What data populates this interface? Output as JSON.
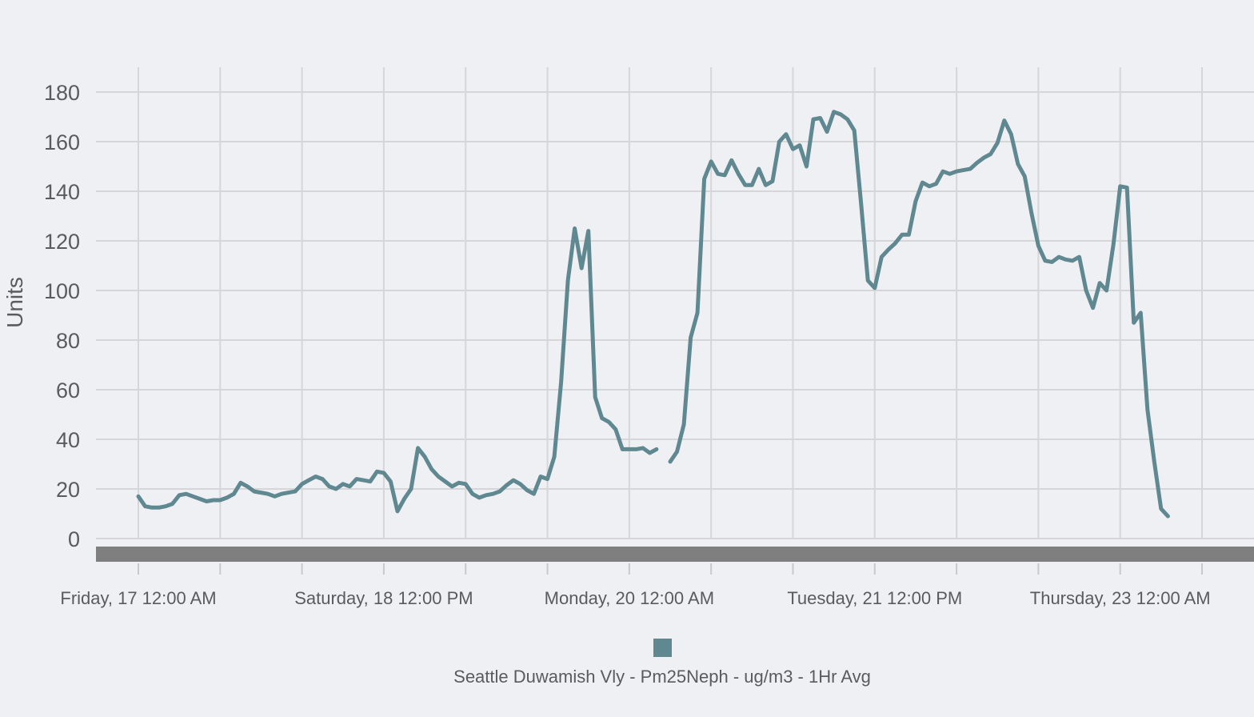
{
  "colors": {
    "series": "#5f8890",
    "baseline_band": "#7f7f7f"
  },
  "chart_data": {
    "type": "line",
    "title": "",
    "xlabel": "",
    "ylabel": "Units",
    "ylim": [
      0,
      180
    ],
    "yticks": [
      0,
      20,
      40,
      60,
      80,
      100,
      120,
      140,
      160,
      180
    ],
    "x_start": "Friday, 17 12:00 AM",
    "x_step": "2 hours",
    "xlim": [
      0,
      158
    ],
    "x_grid_interval": 12,
    "x_tick_labels": [
      {
        "x": 0,
        "label": "Friday, 17 12:00 AM"
      },
      {
        "x": 36,
        "label": "Saturday, 18 12:00 PM"
      },
      {
        "x": 72,
        "label": "Monday, 20 12:00 AM"
      },
      {
        "x": 108,
        "label": "Tuesday, 21 12:00 PM"
      },
      {
        "x": 144,
        "label": "Thursday, 23 12:00 AM"
      }
    ],
    "grid": true,
    "legend_position": "bottom-center",
    "series": [
      {
        "name": "Seattle Duwamish Vly - Pm25Neph - ug/m3 - 1Hr Avg",
        "segments": [
          [
            [
              0,
              17
            ],
            [
              1,
              13
            ],
            [
              2,
              12.5
            ],
            [
              3,
              12.5
            ],
            [
              4,
              13
            ],
            [
              5,
              14
            ],
            [
              6,
              17.5
            ],
            [
              7,
              18
            ],
            [
              8,
              17
            ],
            [
              9,
              16
            ],
            [
              10,
              15
            ],
            [
              11,
              15.5
            ],
            [
              12,
              15.5
            ],
            [
              13,
              16.5
            ],
            [
              14,
              18
            ],
            [
              15,
              22.5
            ],
            [
              16,
              21
            ],
            [
              17,
              19
            ],
            [
              18,
              18.5
            ],
            [
              19,
              18
            ],
            [
              20,
              17
            ],
            [
              21,
              18
            ],
            [
              22,
              18.5
            ],
            [
              23,
              19
            ],
            [
              24,
              22
            ],
            [
              25,
              23.5
            ],
            [
              26,
              25
            ],
            [
              27,
              24
            ],
            [
              28,
              21
            ],
            [
              29,
              20
            ],
            [
              30,
              22
            ],
            [
              31,
              21
            ],
            [
              32,
              24
            ],
            [
              33,
              23.5
            ],
            [
              34,
              23
            ],
            [
              35,
              27
            ],
            [
              36,
              26.5
            ],
            [
              37,
              23
            ],
            [
              38,
              11
            ],
            [
              39,
              16
            ],
            [
              40,
              20
            ],
            [
              41,
              36.5
            ],
            [
              42,
              33
            ],
            [
              43,
              28
            ],
            [
              44,
              25
            ],
            [
              45,
              23
            ],
            [
              46,
              21
            ],
            [
              47,
              22.5
            ],
            [
              48,
              22
            ],
            [
              49,
              18
            ],
            [
              50,
              16.5
            ],
            [
              51,
              17.5
            ],
            [
              52,
              18
            ],
            [
              53,
              19
            ],
            [
              54,
              21.5
            ],
            [
              55,
              23.5
            ],
            [
              56,
              22
            ],
            [
              57,
              19.5
            ],
            [
              58,
              18
            ],
            [
              59,
              25
            ],
            [
              60,
              24
            ],
            [
              61,
              33
            ],
            [
              62,
              63
            ],
            [
              63,
              104
            ],
            [
              64,
              125
            ],
            [
              65,
              109
            ],
            [
              66,
              124
            ],
            [
              67,
              57
            ],
            [
              68,
              48.5
            ],
            [
              69,
              47
            ],
            [
              70,
              44
            ],
            [
              71,
              36
            ],
            [
              72,
              36
            ],
            [
              73,
              36
            ],
            [
              74,
              36.5
            ],
            [
              75,
              34.5
            ],
            [
              76,
              36
            ]
          ],
          [
            [
              78,
              31
            ],
            [
              79,
              35
            ],
            [
              80,
              46
            ],
            [
              81,
              81
            ],
            [
              82,
              91
            ],
            [
              83,
              145
            ],
            [
              84,
              152
            ],
            [
              85,
              147
            ],
            [
              86,
              146.5
            ],
            [
              87,
              152.5
            ],
            [
              88,
              147
            ],
            [
              89,
              142.5
            ],
            [
              90,
              142.5
            ],
            [
              91,
              149
            ],
            [
              92,
              142.5
            ],
            [
              93,
              144
            ],
            [
              94,
              160
            ],
            [
              95,
              163
            ],
            [
              96,
              157
            ],
            [
              97,
              158.5
            ],
            [
              98,
              150
            ],
            [
              99,
              169
            ],
            [
              100,
              169.5
            ],
            [
              101,
              164
            ],
            [
              102,
              172
            ],
            [
              103,
              171
            ],
            [
              104,
              169
            ],
            [
              105,
              164.5
            ],
            [
              106,
              135
            ],
            [
              107,
              104
            ],
            [
              108,
              101
            ],
            [
              109,
              113.5
            ],
            [
              110,
              116.5
            ],
            [
              111,
              119
            ],
            [
              112,
              122.5
            ],
            [
              113,
              122.5
            ],
            [
              114,
              136
            ],
            [
              115,
              143.5
            ],
            [
              116,
              142
            ],
            [
              117,
              143
            ],
            [
              118,
              148
            ],
            [
              119,
              147
            ],
            [
              120,
              148
            ],
            [
              121,
              148.5
            ],
            [
              122,
              149
            ],
            [
              123,
              151.5
            ],
            [
              124,
              153.5
            ],
            [
              125,
              155
            ],
            [
              126,
              159.5
            ],
            [
              127,
              168.5
            ],
            [
              128,
              163
            ],
            [
              129,
              151
            ],
            [
              130,
              146
            ],
            [
              131,
              131
            ],
            [
              132,
              118
            ],
            [
              133,
              112
            ],
            [
              134,
              111.5
            ],
            [
              135,
              113.5
            ],
            [
              136,
              112.5
            ],
            [
              137,
              112
            ],
            [
              138,
              113.5
            ],
            [
              139,
              100
            ],
            [
              140,
              93
            ],
            [
              141,
              103
            ],
            [
              142,
              100
            ],
            [
              143,
              118.5
            ],
            [
              144,
              142
            ],
            [
              145,
              141.5
            ],
            [
              146,
              87
            ],
            [
              147,
              91
            ],
            [
              148,
              52
            ],
            [
              149,
              31
            ],
            [
              150,
              12
            ],
            [
              151,
              9
            ]
          ]
        ]
      }
    ]
  }
}
